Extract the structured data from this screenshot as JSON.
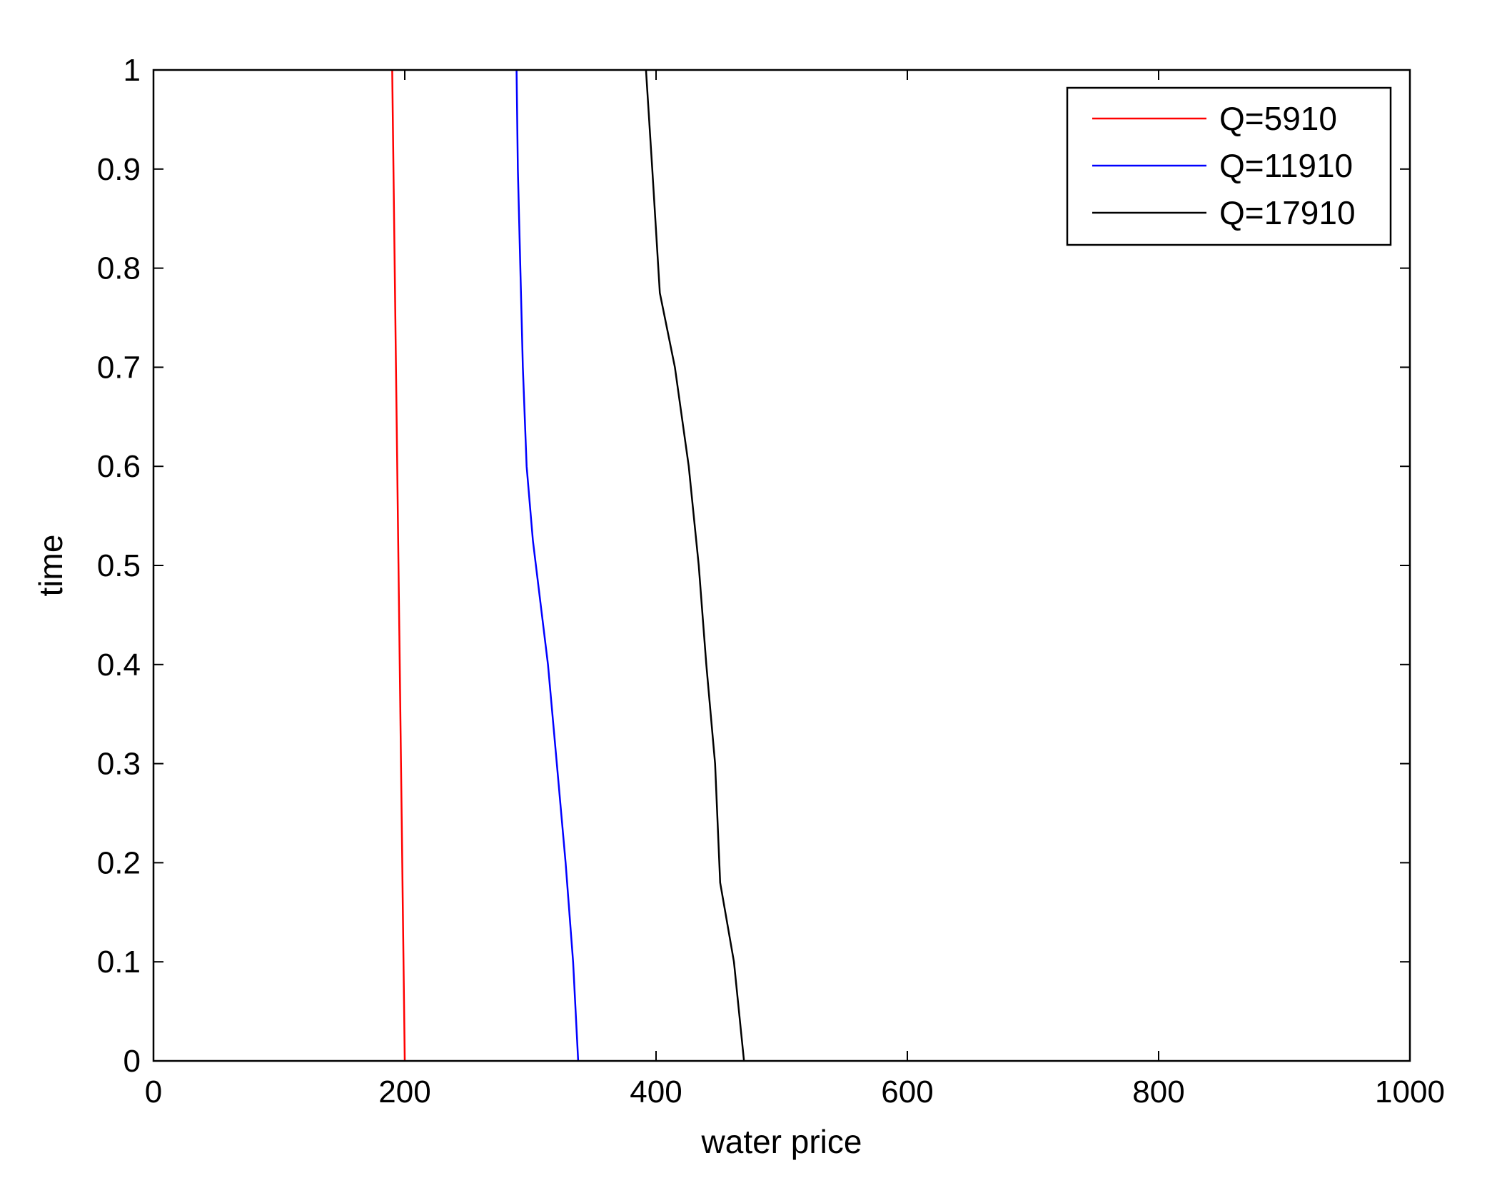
{
  "chart_data": {
    "type": "line",
    "xlabel": "water price",
    "ylabel": "time",
    "xlim": [
      0,
      1000
    ],
    "ylim": [
      0,
      1
    ],
    "xticks": [
      0,
      200,
      400,
      600,
      800,
      1000
    ],
    "yticks": [
      0,
      0.1,
      0.2,
      0.3,
      0.4,
      0.5,
      0.6,
      0.7,
      0.8,
      0.9,
      1
    ],
    "xtick_labels": [
      "0",
      "200",
      "400",
      "600",
      "800",
      "1000"
    ],
    "ytick_labels": [
      "0",
      "0.1",
      "0.2",
      "0.3",
      "0.4",
      "0.5",
      "0.6",
      "0.7",
      "0.8",
      "0.9",
      "1"
    ],
    "grid": false,
    "legend_position": "top-right",
    "series": [
      {
        "name": "Q=5910",
        "color": "#ff0000",
        "points": [
          [
            200,
            0
          ],
          [
            190,
            1
          ]
        ]
      },
      {
        "name": "Q=11910",
        "color": "#0000ff",
        "points": [
          [
            338,
            0
          ],
          [
            334,
            0.1
          ],
          [
            328,
            0.2
          ],
          [
            321,
            0.3
          ],
          [
            314,
            0.4
          ],
          [
            302,
            0.525
          ],
          [
            297,
            0.6
          ],
          [
            294,
            0.7
          ],
          [
            292,
            0.8
          ],
          [
            290,
            0.9
          ],
          [
            289,
            1
          ]
        ]
      },
      {
        "name": "Q=17910",
        "color": "#000000",
        "points": [
          [
            470,
            0
          ],
          [
            462,
            0.1
          ],
          [
            451,
            0.18
          ],
          [
            447,
            0.3
          ],
          [
            440,
            0.4
          ],
          [
            434,
            0.5
          ],
          [
            426,
            0.6
          ],
          [
            415,
            0.7
          ],
          [
            403,
            0.775
          ],
          [
            397,
            0.9
          ],
          [
            392,
            1
          ]
        ]
      }
    ]
  }
}
